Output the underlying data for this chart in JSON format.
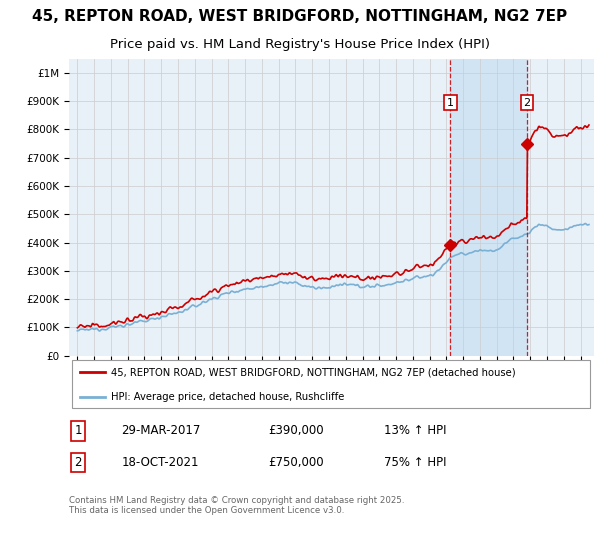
{
  "title": "45, REPTON ROAD, WEST BRIDGFORD, NOTTINGHAM, NG2 7EP",
  "subtitle": "Price paid vs. HM Land Registry's House Price Index (HPI)",
  "legend_property": "45, REPTON ROAD, WEST BRIDGFORD, NOTTINGHAM, NG2 7EP (detached house)",
  "legend_hpi": "HPI: Average price, detached house, Rushcliffe",
  "transaction1_label": "1",
  "transaction1_date": "29-MAR-2017",
  "transaction1_price": "£390,000",
  "transaction1_hpi": "13% ↑ HPI",
  "transaction1_year": 2017.24,
  "transaction1_value": 390000,
  "transaction2_label": "2",
  "transaction2_date": "18-OCT-2021",
  "transaction2_price": "£750,000",
  "transaction2_hpi": "75% ↑ HPI",
  "transaction2_year": 2021.8,
  "transaction2_value": 750000,
  "footnote": "Contains HM Land Registry data © Crown copyright and database right 2025.\nThis data is licensed under the Open Government Licence v3.0.",
  "property_color": "#cc0000",
  "hpi_color": "#7ab0d4",
  "vline_color": "#cc0000",
  "background_color": "#e8f0f8",
  "shade_color": "#d0e4f4",
  "plot_bg": "#ffffff",
  "ylim": [
    0,
    1050000
  ],
  "xlim": [
    1994.5,
    2025.8
  ],
  "grid_color": "#cccccc",
  "title_fontsize": 11,
  "subtitle_fontsize": 9.5
}
